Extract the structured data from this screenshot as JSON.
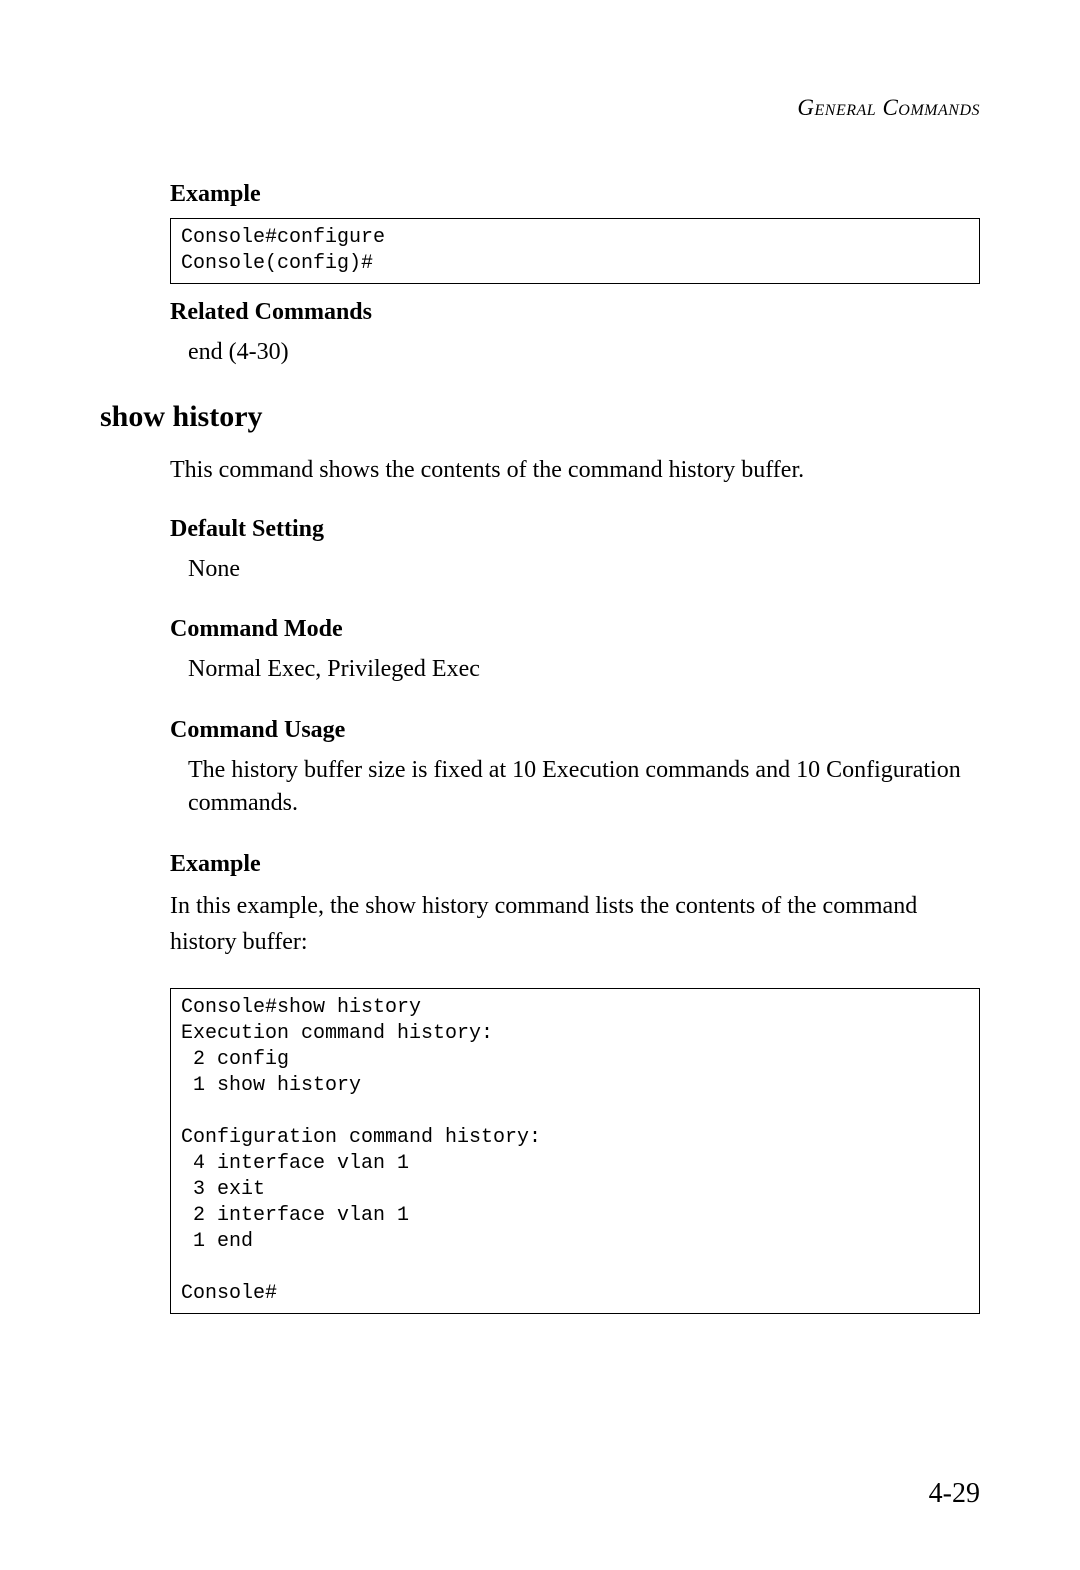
{
  "header": {
    "title_html": "General Commands"
  },
  "sections": {
    "example1": {
      "heading": "Example",
      "code": "Console#configure\nConsole(config)#"
    },
    "related_commands": {
      "heading": "Related Commands",
      "text": "end (4-30)"
    },
    "command": {
      "title": "show history",
      "description": "This command shows the contents of the command history buffer."
    },
    "default_setting": {
      "heading": "Default Setting",
      "text": "None"
    },
    "command_mode": {
      "heading": "Command Mode",
      "text": "Normal Exec, Privileged Exec"
    },
    "command_usage": {
      "heading": "Command Usage",
      "text": "The history buffer size is fixed at 10 Execution commands and 10 Configuration commands."
    },
    "example2": {
      "heading": "Example",
      "intro": "In this example, the show history command lists the contents of the command history buffer:",
      "code": "Console#show history\nExecution command history:\n 2 config\n 1 show history\n\nConfiguration command history:\n 4 interface vlan 1\n 3 exit\n 2 interface vlan 1\n 1 end\n\nConsole#"
    }
  },
  "page_number": "4-29",
  "styles": {
    "background_color": "#ffffff",
    "text_color": "#000000",
    "border_color": "#000000",
    "body_font": "Georgia, serif",
    "code_font": "Courier New, monospace",
    "body_fontsize": 24,
    "heading_fontsize": 24,
    "command_title_fontsize": 30,
    "code_fontsize": 20,
    "page_number_fontsize": 28
  }
}
